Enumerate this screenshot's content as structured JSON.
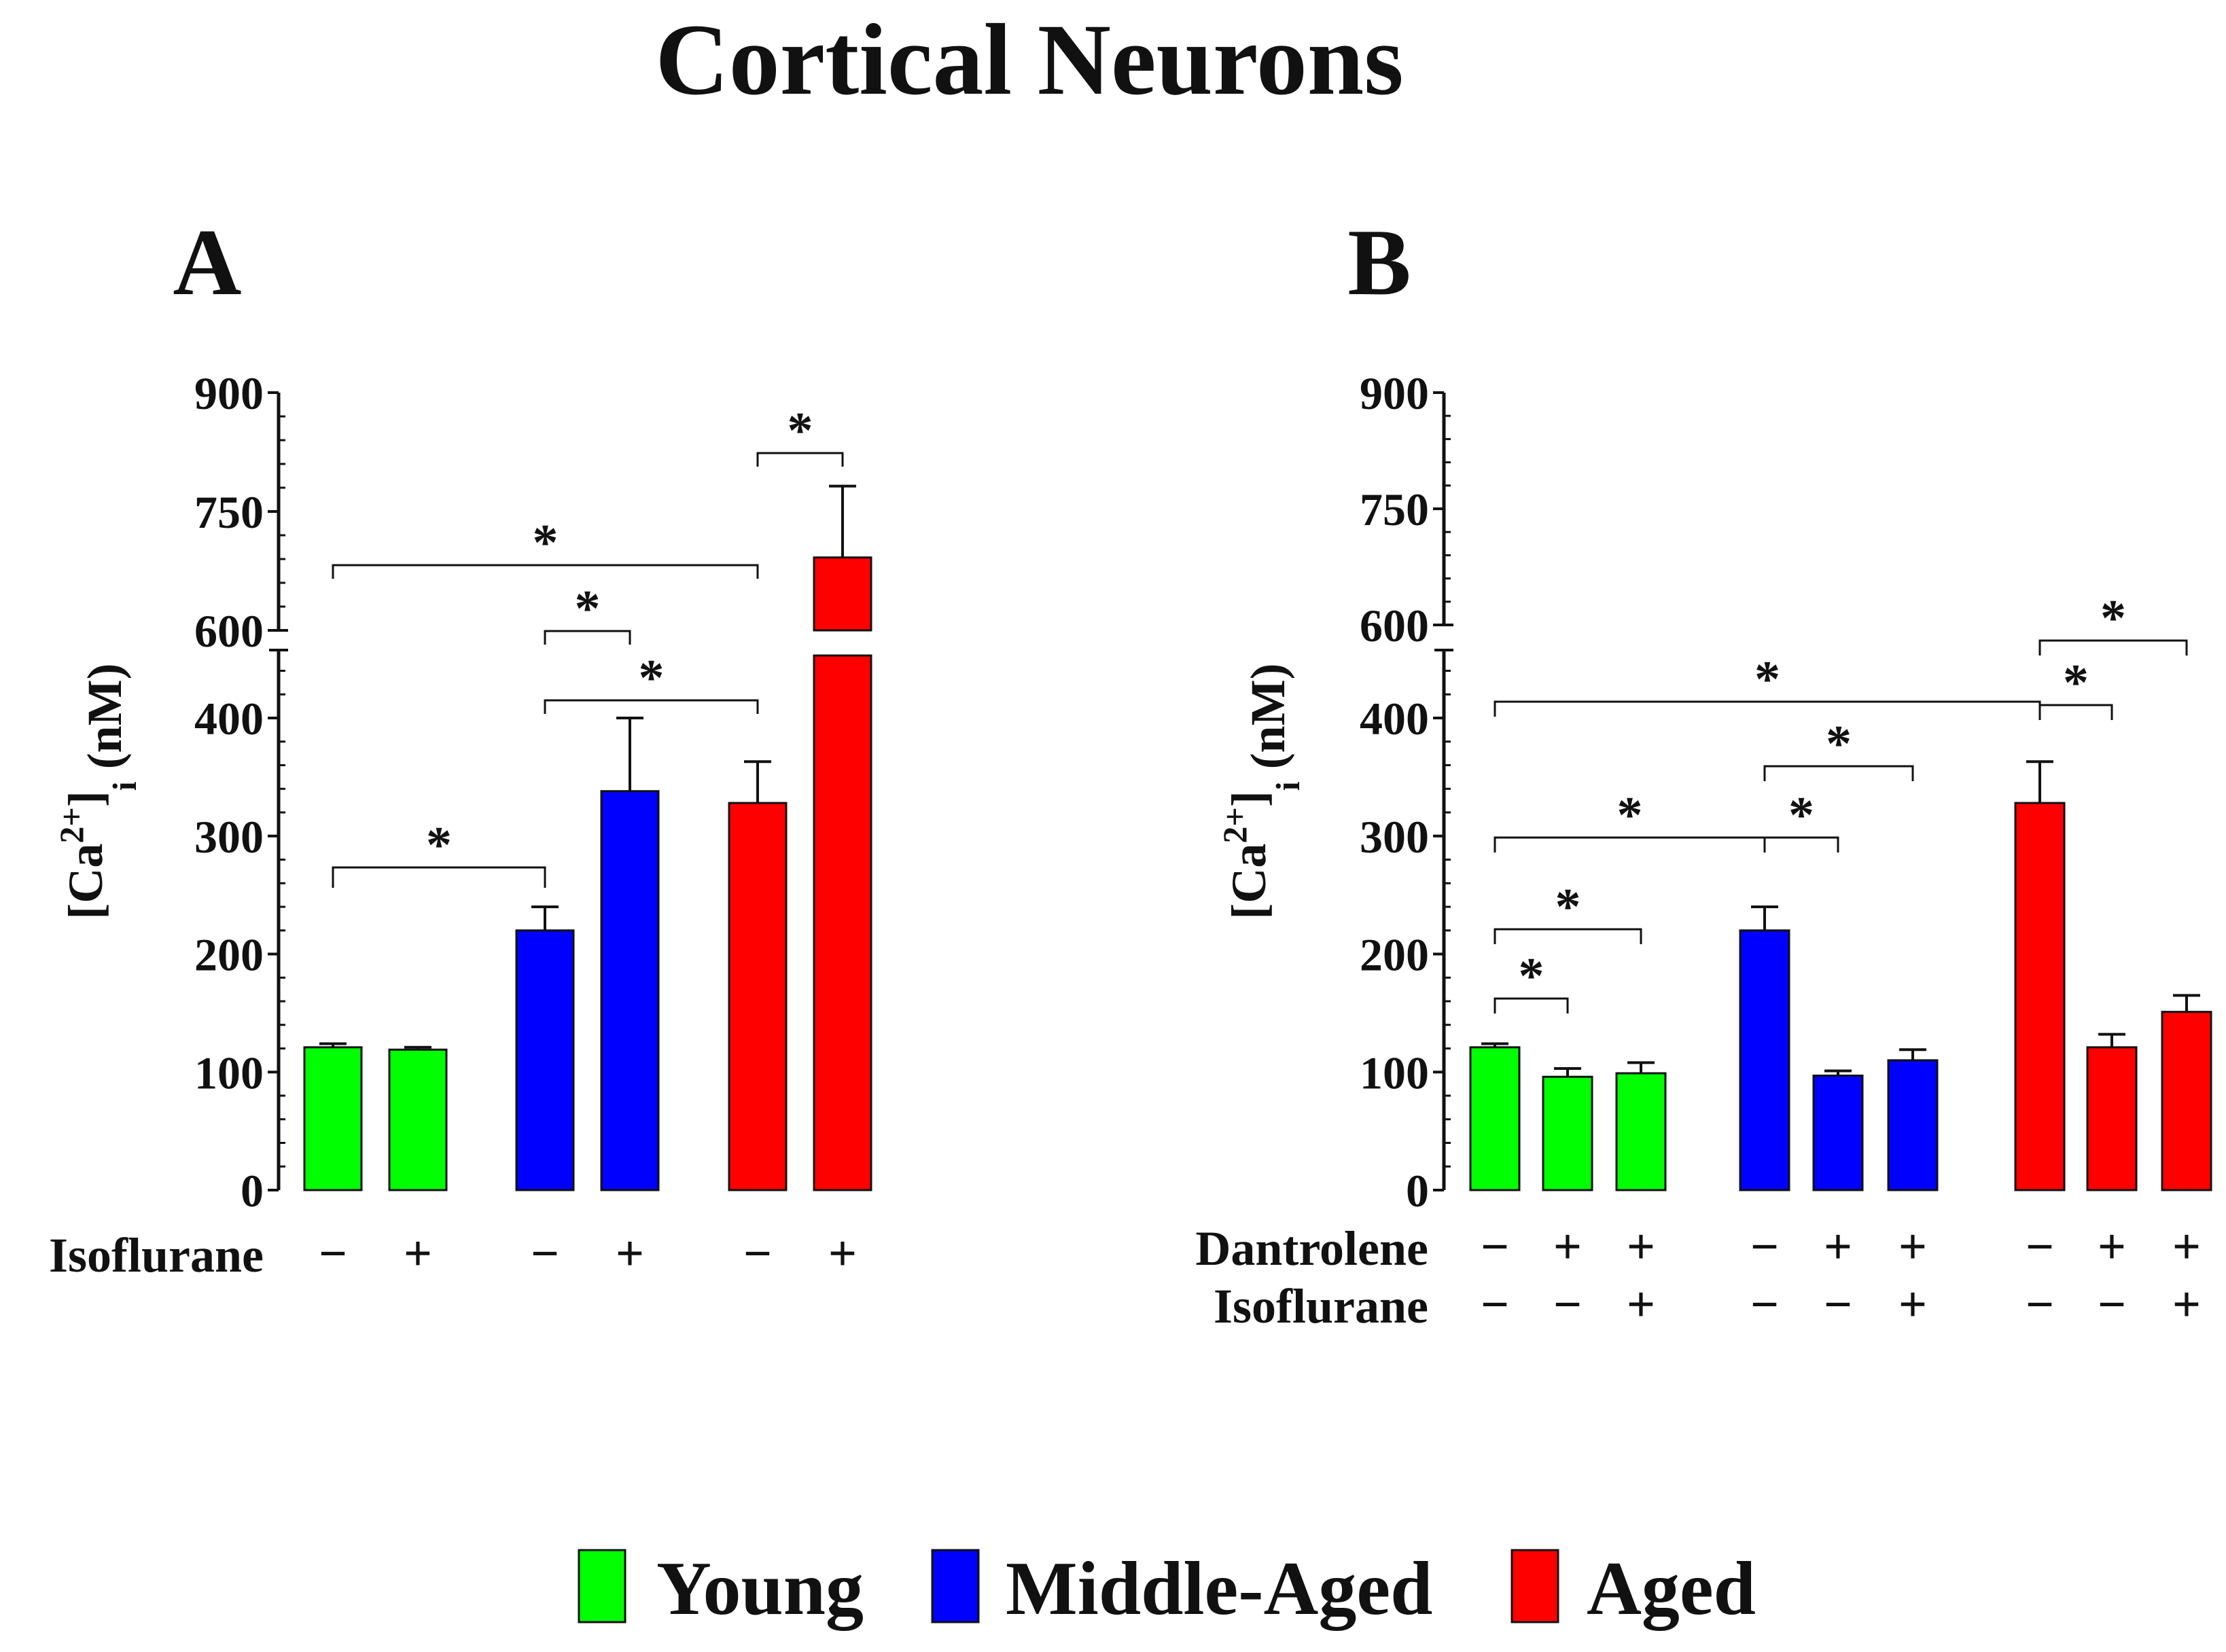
{
  "title": "Cortical Neurons",
  "colors": {
    "young": "#00ff00",
    "middle_aged": "#0000ff",
    "aged": "#ff0000",
    "ink": "#111111"
  },
  "legend": [
    {
      "label": "Young",
      "color": "#00ff00"
    },
    {
      "label": "Middle-Aged",
      "color": "#0000ff"
    },
    {
      "label": "Aged",
      "color": "#ff0000"
    }
  ],
  "chart_data": [
    {
      "panel": "A",
      "type": "bar",
      "ylabel_main": "[Ca",
      "ylabel_sup": "2+",
      "ylabel_mid": "]",
      "ylabel_sub": "i",
      "ylabel_end": " (nM)",
      "axis_break": {
        "lower_max": 450,
        "upper_min": 600,
        "upper_max": 900
      },
      "yticks": [
        0,
        100,
        200,
        300,
        400,
        600,
        750,
        900
      ],
      "row_labels": [
        "Isoflurane"
      ],
      "bars": [
        {
          "group": "Young",
          "color": "#00ff00",
          "value": 121,
          "error": 3,
          "conds": [
            "−"
          ]
        },
        {
          "group": "Young",
          "color": "#00ff00",
          "value": 119,
          "error": 2,
          "conds": [
            "+"
          ]
        },
        {
          "group": "Middle-Aged",
          "color": "#0000ff",
          "value": 220,
          "error": 20,
          "conds": [
            "−"
          ]
        },
        {
          "group": "Middle-Aged",
          "color": "#0000ff",
          "value": 338,
          "error": 62,
          "conds": [
            "+"
          ]
        },
        {
          "group": "Aged",
          "color": "#ff0000",
          "value": 328,
          "error": 35,
          "conds": [
            "−"
          ]
        },
        {
          "group": "Aged",
          "color": "#ff0000",
          "value": 692,
          "error": 90,
          "conds": [
            "+"
          ]
        }
      ],
      "significance": [
        {
          "from": 0,
          "to": 2,
          "label": "*"
        },
        {
          "from": 2,
          "to": 4,
          "label": "*"
        },
        {
          "from": 2,
          "to": 3,
          "label": "*"
        },
        {
          "from": 0,
          "to": 4,
          "label": "*"
        },
        {
          "from": 4,
          "to": 5,
          "label": "*"
        }
      ]
    },
    {
      "panel": "B",
      "type": "bar",
      "ylabel_main": "[Ca",
      "ylabel_sup": "2+",
      "ylabel_mid": "]",
      "ylabel_sub": "i",
      "ylabel_end": " (nM)",
      "axis_break": {
        "lower_max": 450,
        "upper_min": 600,
        "upper_max": 900
      },
      "yticks": [
        0,
        100,
        200,
        300,
        400,
        600,
        750,
        900
      ],
      "row_labels": [
        "Dantrolene",
        "Isoflurane"
      ],
      "bars": [
        {
          "group": "Young",
          "color": "#00ff00",
          "value": 121,
          "error": 3,
          "conds": [
            "−",
            "−"
          ]
        },
        {
          "group": "Young",
          "color": "#00ff00",
          "value": 96,
          "error": 7,
          "conds": [
            "+",
            "−"
          ]
        },
        {
          "group": "Young",
          "color": "#00ff00",
          "value": 99,
          "error": 9,
          "conds": [
            "+",
            "+"
          ]
        },
        {
          "group": "Middle-Aged",
          "color": "#0000ff",
          "value": 220,
          "error": 20,
          "conds": [
            "−",
            "−"
          ]
        },
        {
          "group": "Middle-Aged",
          "color": "#0000ff",
          "value": 97,
          "error": 4,
          "conds": [
            "+",
            "−"
          ]
        },
        {
          "group": "Middle-Aged",
          "color": "#0000ff",
          "value": 110,
          "error": 9,
          "conds": [
            "+",
            "+"
          ]
        },
        {
          "group": "Aged",
          "color": "#ff0000",
          "value": 328,
          "error": 35,
          "conds": [
            "−",
            "−"
          ]
        },
        {
          "group": "Aged",
          "color": "#ff0000",
          "value": 121,
          "error": 11,
          "conds": [
            "+",
            "−"
          ]
        },
        {
          "group": "Aged",
          "color": "#ff0000",
          "value": 151,
          "error": 14,
          "conds": [
            "+",
            "+"
          ]
        }
      ],
      "significance": [
        {
          "from": 0,
          "to": 1,
          "label": "*"
        },
        {
          "from": 0,
          "to": 2,
          "label": "*"
        },
        {
          "from": 0,
          "to": 3,
          "label": "*"
        },
        {
          "from": 3,
          "to": 4,
          "label": "*"
        },
        {
          "from": 3,
          "to": 5,
          "label": "*"
        },
        {
          "from": 0,
          "to": 6,
          "label": "*"
        },
        {
          "from": 6,
          "to": 7,
          "label": "*"
        },
        {
          "from": 6,
          "to": 8,
          "label": "*"
        }
      ]
    }
  ]
}
